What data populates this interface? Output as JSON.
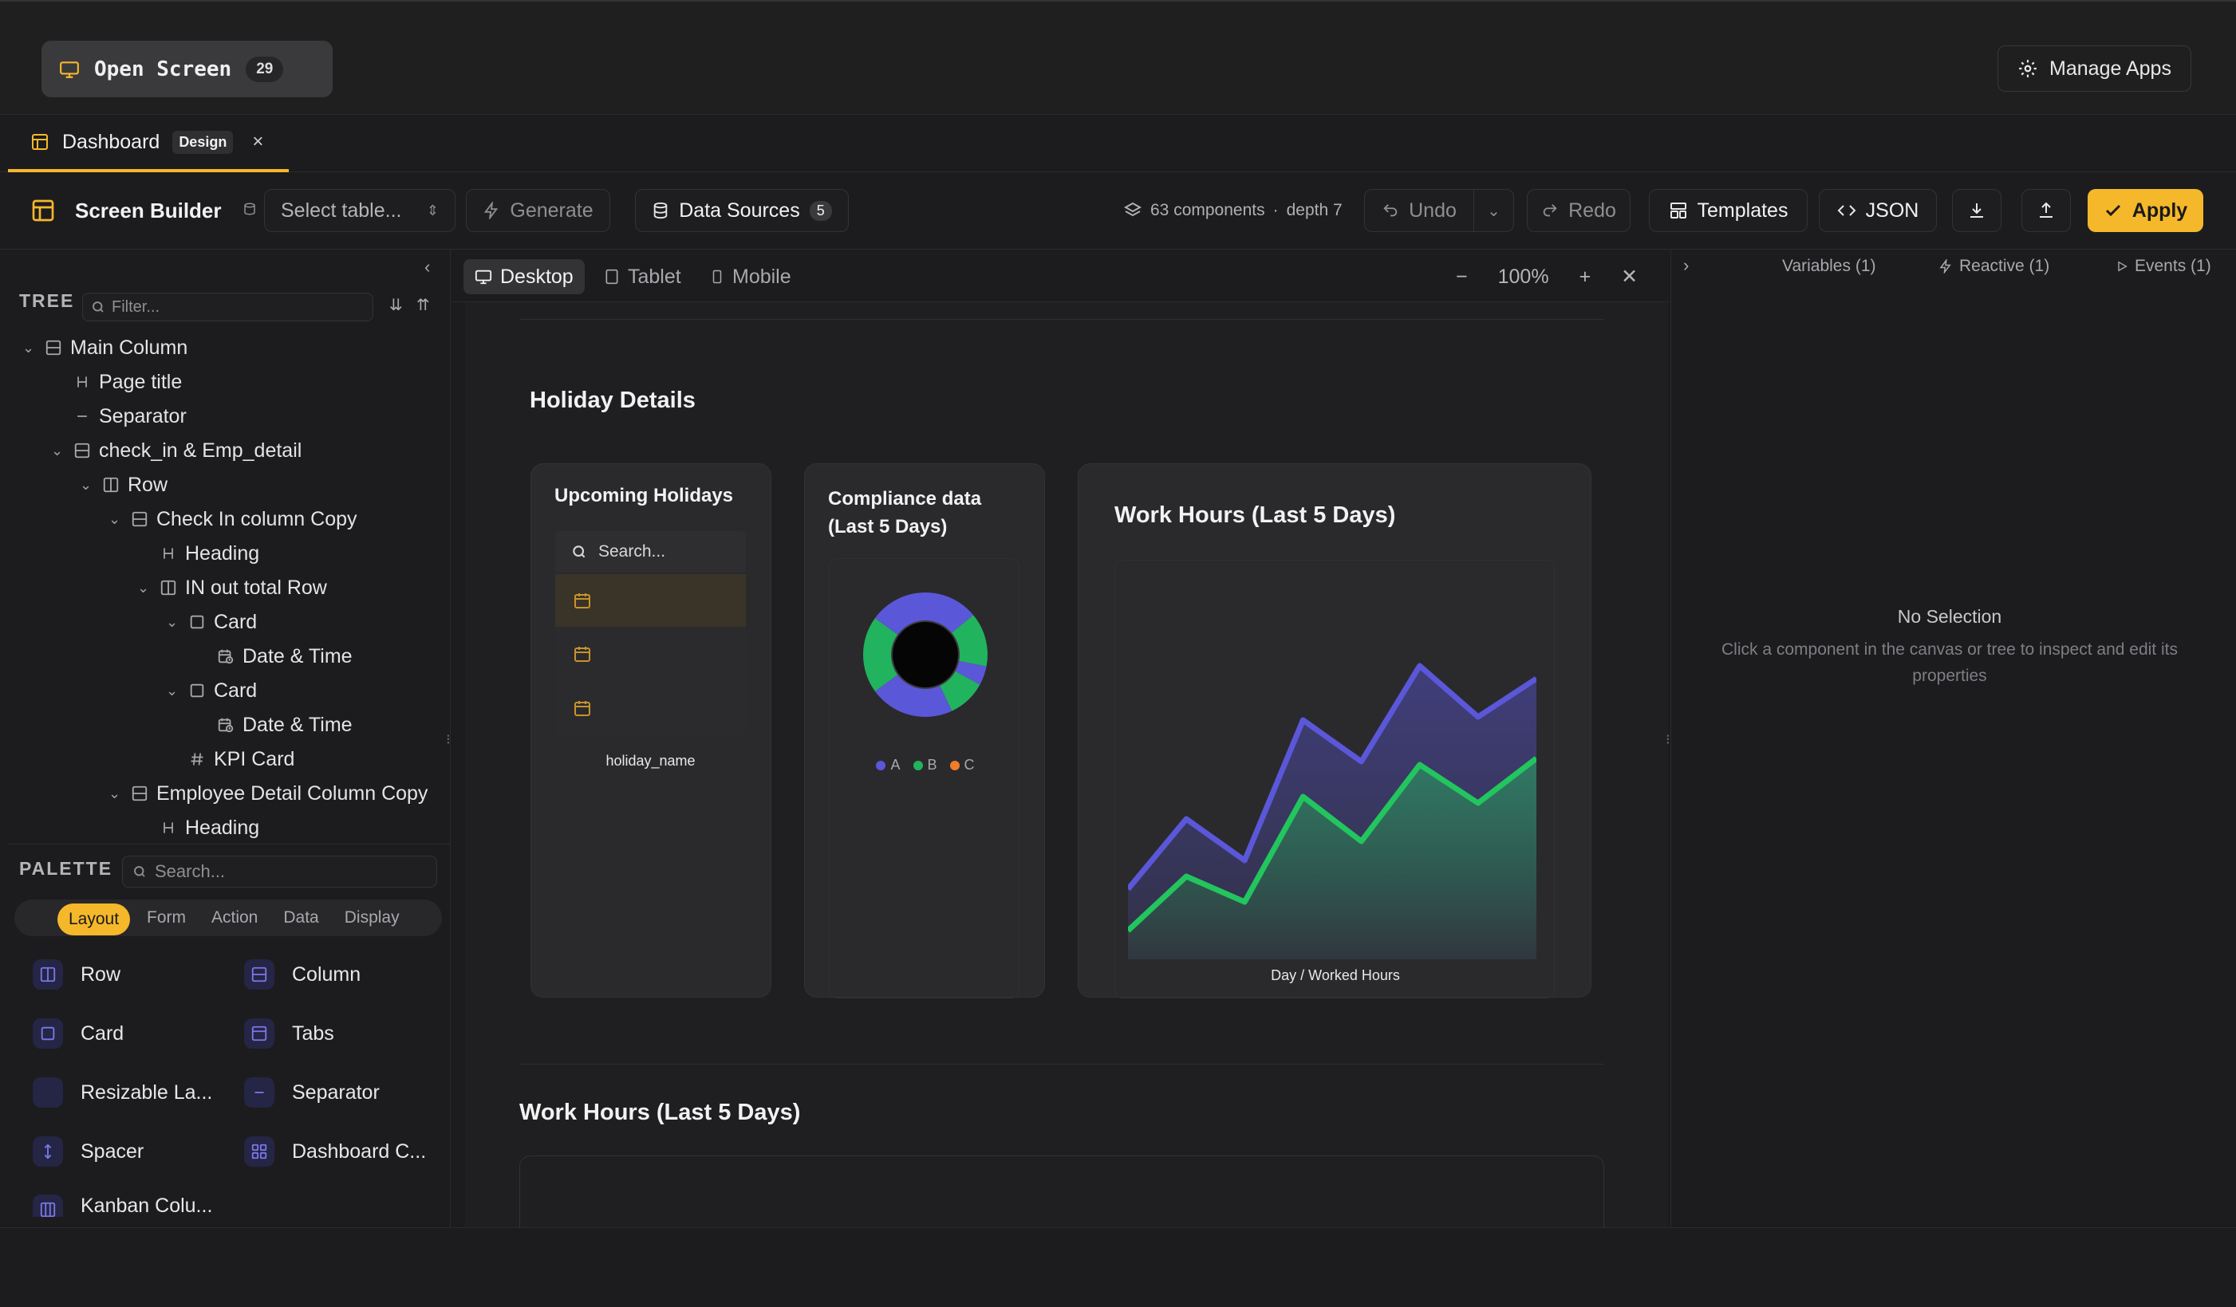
{
  "topbar": {
    "open_screen_label": "Open Screen",
    "open_screen_count": "29",
    "manage_apps_label": "Manage Apps"
  },
  "tab": {
    "label": "Dashboard",
    "badge": "Design",
    "close": "×"
  },
  "toolbar": {
    "title": "Screen Builder",
    "select_table_placeholder": "Select table...",
    "generate_label": "Generate",
    "data_sources_label": "Data Sources",
    "data_sources_count": "5",
    "components_info": "63 components",
    "depth_info": "depth 7",
    "undo_label": "Undo",
    "redo_label": "Redo",
    "templates_label": "Templates",
    "json_label": "JSON",
    "apply_label": "Apply"
  },
  "tree": {
    "header": "TREE",
    "filter_placeholder": "Filter...",
    "items": [
      {
        "label": "Main Column",
        "icon": "column-icon",
        "chev": "⌄"
      },
      {
        "label": "Page title",
        "icon": "heading-icon",
        "chev": ""
      },
      {
        "label": "Separator",
        "icon": "separator-icon",
        "chev": ""
      },
      {
        "label": "check_in & Emp_detail",
        "icon": "column-icon",
        "chev": "⌄"
      },
      {
        "label": "Row",
        "icon": "row-icon",
        "chev": "⌄"
      },
      {
        "label": "Check In column Copy",
        "icon": "column-icon",
        "chev": "⌄"
      },
      {
        "label": "Heading",
        "icon": "heading-icon",
        "chev": ""
      },
      {
        "label": "IN out total Row",
        "icon": "row-icon",
        "chev": "⌄"
      },
      {
        "label": "Card",
        "icon": "card-icon",
        "chev": "⌄"
      },
      {
        "label": "Date & Time",
        "icon": "datetime-icon",
        "chev": ""
      },
      {
        "label": "Card",
        "icon": "card-icon",
        "chev": "⌄"
      },
      {
        "label": "Date & Time",
        "icon": "datetime-icon",
        "chev": ""
      },
      {
        "label": "KPI Card",
        "icon": "hash-icon",
        "chev": ""
      },
      {
        "label": "Employee Detail Column Copy",
        "icon": "column-icon",
        "chev": "⌄"
      },
      {
        "label": "Heading",
        "icon": "heading-icon",
        "chev": ""
      }
    ]
  },
  "palette": {
    "header": "PALETTE",
    "search_placeholder": "Search...",
    "tabs": [
      "Layout",
      "Form",
      "Action",
      "Data",
      "Display"
    ],
    "items": [
      {
        "label": "Row",
        "icon": "row-icon"
      },
      {
        "label": "Column",
        "icon": "column-icon"
      },
      {
        "label": "Card",
        "icon": "card-icon"
      },
      {
        "label": "Tabs",
        "icon": "tabs-icon"
      },
      {
        "label": "Resizable La...",
        "icon": "resizable-icon"
      },
      {
        "label": "Separator",
        "icon": "separator-icon"
      },
      {
        "label": "Spacer",
        "icon": "spacer-icon"
      },
      {
        "label": "Dashboard C...",
        "icon": "dashboard-icon"
      },
      {
        "label": "Kanban Colu...",
        "icon": "kanban-icon"
      }
    ]
  },
  "canvas": {
    "devices": [
      "Desktop",
      "Tablet",
      "Mobile"
    ],
    "zoom_minus": "−",
    "zoom_level": "100%",
    "zoom_plus": "+",
    "close": "✕",
    "section_title": "Holiday Details",
    "upcoming": {
      "title": "Upcoming Holidays",
      "search_placeholder": "Search...",
      "column_label": "holiday_name"
    },
    "compliance": {
      "title": "Compliance data",
      "title2": "(Last 5 Days)",
      "legend": [
        "A",
        "B",
        "C"
      ]
    },
    "work_hours": {
      "title": "Work Hours (Last 5 Days)",
      "axis_caption": "Day / Worked Hours"
    },
    "section2_title": "Work Hours (Last 5 Days)"
  },
  "chart_data": [
    {
      "type": "pie",
      "title": "Compliance data (Last 5 Days)",
      "categories": [
        "A",
        "B",
        "C"
      ],
      "values": [
        55,
        45,
        0
      ],
      "colors": [
        "#5b57d9",
        "#22b35e",
        "#f07d2a"
      ],
      "legend_position": "bottom"
    },
    {
      "type": "area",
      "title": "Work Hours (Last 5 Days)",
      "xlabel": "Day / Worked Hours",
      "x": [
        0,
        1,
        2,
        3,
        4,
        5,
        6,
        7
      ],
      "series": [
        {
          "values": [
            2.2,
            4.4,
            3.1,
            7.5,
            6.2,
            9.2,
            7.6,
            8.8
          ],
          "color": "#5b57d9"
        },
        {
          "values": [
            0.9,
            2.6,
            1.8,
            5.1,
            3.7,
            6.1,
            4.9,
            6.3
          ],
          "color": "#22c55e"
        }
      ],
      "ylim": [
        0,
        10
      ],
      "grid": false
    }
  ],
  "right_panel": {
    "tabs": [
      "Variables (1)",
      "Reactive (1)",
      "Events (1)"
    ],
    "no_selection_title": "No Selection",
    "no_selection_text": "Click a component in the canvas or tree to inspect and edit its properties"
  },
  "colors": {
    "accent": "#f5b82a",
    "series_a": "#5b57d9",
    "series_b": "#22c55e",
    "series_c": "#f07d2a"
  }
}
